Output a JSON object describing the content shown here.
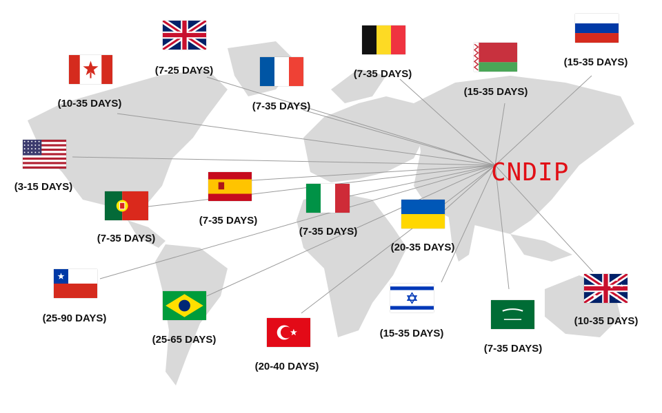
{
  "brand": {
    "text": "CNDIP",
    "color": "#e10f16"
  },
  "map": {
    "land_color": "#d9d9d9",
    "line_color": "#9a9a9a"
  },
  "destinations": [
    {
      "flag": "uk-flag",
      "label": "(7-25 DAYS)"
    },
    {
      "flag": "canada-flag",
      "label": "(10-35 DAYS)"
    },
    {
      "flag": "france-flag",
      "label": "(7-35 DAYS)"
    },
    {
      "flag": "belgium-flag",
      "label": "(7-35 DAYS)"
    },
    {
      "flag": "belarus-flag",
      "label": "(15-35 DAYS)"
    },
    {
      "flag": "russia-flag",
      "label": "(15-35 DAYS)"
    },
    {
      "flag": "usa-flag",
      "label": "(3-15 DAYS)"
    },
    {
      "flag": "spain-flag",
      "label": "(7-35 DAYS)"
    },
    {
      "flag": "portugal-flag",
      "label": "(7-35 DAYS)"
    },
    {
      "flag": "italy-flag",
      "label": "(7-35 DAYS)"
    },
    {
      "flag": "ukraine-flag",
      "label": "(20-35 DAYS)"
    },
    {
      "flag": "chile-flag",
      "label": "(25-90 DAYS)"
    },
    {
      "flag": "brazil-flag",
      "label": "(25-65 DAYS)"
    },
    {
      "flag": "turkey-flag",
      "label": "(20-40 DAYS)"
    },
    {
      "flag": "israel-flag",
      "label": "(15-35 DAYS)"
    },
    {
      "flag": "saudi-arabia-flag",
      "label": "(7-35 DAYS)"
    },
    {
      "flag": "australia-flag",
      "label": "(10-35 DAYS)"
    }
  ]
}
